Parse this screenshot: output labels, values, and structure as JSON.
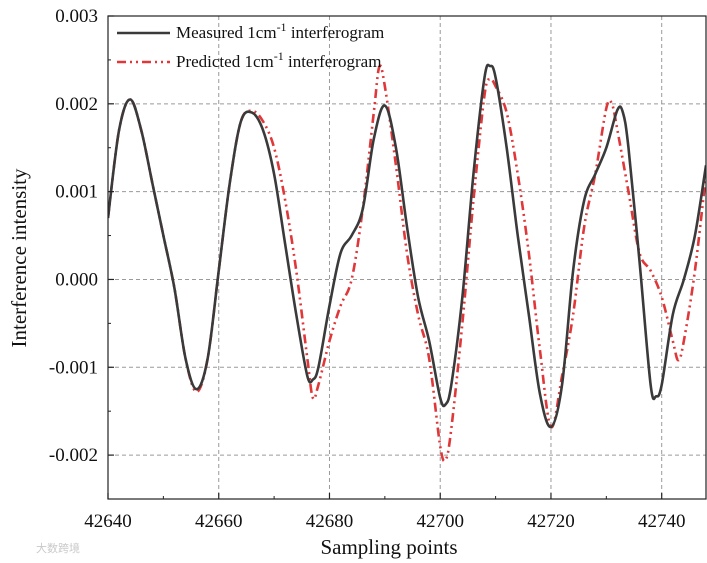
{
  "chart_data": {
    "type": "line",
    "title": "",
    "xlabel": "Sampling points",
    "ylabel": "Interference intensity",
    "xlim": [
      42640,
      42748
    ],
    "ylim": [
      -0.0025,
      0.003
    ],
    "xticks": [
      42640,
      42660,
      42680,
      42700,
      42720,
      42740
    ],
    "yticks": [
      -0.002,
      -0.001,
      0.0,
      0.001,
      0.002,
      0.003
    ],
    "xtick_labels": [
      "42640",
      "42660",
      "42680",
      "42700",
      "42720",
      "42740"
    ],
    "ytick_labels": [
      "-0.002",
      "-0.001",
      "0.000",
      "0.001",
      "0.002",
      "0.003"
    ],
    "grid": true,
    "legend_position": "top-left",
    "series": [
      {
        "name": "Measured 1cm-1 interferogram",
        "legend_main": "Measured 1cm",
        "legend_sup": "-1",
        "legend_tail": " interferogram",
        "color": "#3a3a3a",
        "style": "solid",
        "points": [
          [
            42640,
            0.0007
          ],
          [
            42642,
            0.0017
          ],
          [
            42644,
            0.00205
          ],
          [
            42646,
            0.0017
          ],
          [
            42648,
            0.0011
          ],
          [
            42650,
            0.0005
          ],
          [
            42652,
            -0.0001
          ],
          [
            42654,
            -0.0009
          ],
          [
            42656,
            -0.00125
          ],
          [
            42658,
            -0.0009
          ],
          [
            42660,
            0.0001
          ],
          [
            42662,
            0.0011
          ],
          [
            42664,
            0.0018
          ],
          [
            42666,
            0.0019
          ],
          [
            42668,
            0.0017
          ],
          [
            42670,
            0.0012
          ],
          [
            42672,
            0.0004
          ],
          [
            42674,
            -0.0004
          ],
          [
            42676,
            -0.0011
          ],
          [
            42677,
            -0.00114
          ],
          [
            42678,
            -0.001
          ],
          [
            42680,
            -0.0003
          ],
          [
            42682,
            0.0003
          ],
          [
            42684,
            0.0005
          ],
          [
            42686,
            0.0008
          ],
          [
            42688,
            0.0016
          ],
          [
            42690,
            0.00198
          ],
          [
            42692,
            0.0015
          ],
          [
            42694,
            0.0006
          ],
          [
            42696,
            -0.0002
          ],
          [
            42698,
            -0.0007
          ],
          [
            42700,
            -0.00135
          ],
          [
            42701,
            -0.00142
          ],
          [
            42702,
            -0.0012
          ],
          [
            42704,
            -0.0002
          ],
          [
            42706,
            0.0012
          ],
          [
            42708,
            0.0023
          ],
          [
            42709,
            0.00243
          ],
          [
            42710,
            0.0023
          ],
          [
            42712,
            0.0015
          ],
          [
            42714,
            0.0005
          ],
          [
            42716,
            -0.0004
          ],
          [
            42718,
            -0.0013
          ],
          [
            42720,
            -0.00168
          ],
          [
            42722,
            -0.0012
          ],
          [
            42724,
            0.0001
          ],
          [
            42726,
            0.0009
          ],
          [
            42728,
            0.0012
          ],
          [
            42730,
            0.0015
          ],
          [
            42732,
            0.00193
          ],
          [
            42733,
            0.0019
          ],
          [
            42734,
            0.0015
          ],
          [
            42736,
            0.0002
          ],
          [
            42738,
            -0.0012
          ],
          [
            42739,
            -0.00133
          ],
          [
            42740,
            -0.0012
          ],
          [
            42742,
            -0.0004
          ],
          [
            42744,
            0.0
          ],
          [
            42746,
            0.0005
          ],
          [
            42748,
            0.0013
          ]
        ]
      },
      {
        "name": "Predicted 1cm-1 interferogram",
        "legend_main": "Predicted 1cm",
        "legend_sup": "-1",
        "legend_tail": " interferogram",
        "color": "#e0383a",
        "style": "dash-dot-dot",
        "points": [
          [
            42640,
            0.0007
          ],
          [
            42642,
            0.0017
          ],
          [
            42644,
            0.00205
          ],
          [
            42646,
            0.0017
          ],
          [
            42648,
            0.0011
          ],
          [
            42650,
            0.0005
          ],
          [
            42652,
            -0.0001
          ],
          [
            42654,
            -0.0009
          ],
          [
            42656,
            -0.00128
          ],
          [
            42658,
            -0.0009
          ],
          [
            42660,
            0.0001
          ],
          [
            42662,
            0.0011
          ],
          [
            42664,
            0.0018
          ],
          [
            42666,
            0.00192
          ],
          [
            42668,
            0.0018
          ],
          [
            42670,
            0.0015
          ],
          [
            42672,
            0.0009
          ],
          [
            42674,
            0.0001
          ],
          [
            42676,
            -0.0009
          ],
          [
            42677,
            -0.00135
          ],
          [
            42678,
            -0.0012
          ],
          [
            42680,
            -0.0007
          ],
          [
            42682,
            -0.0003
          ],
          [
            42684,
            0.0
          ],
          [
            42686,
            0.0008
          ],
          [
            42688,
            0.0019
          ],
          [
            42689,
            0.00242
          ],
          [
            42690,
            0.0022
          ],
          [
            42692,
            0.0013
          ],
          [
            42694,
            0.0003
          ],
          [
            42696,
            -0.0004
          ],
          [
            42698,
            -0.0009
          ],
          [
            42700,
            -0.0019
          ],
          [
            42701,
            -0.00205
          ],
          [
            42702,
            -0.0017
          ],
          [
            42704,
            -0.0005
          ],
          [
            42706,
            0.0009
          ],
          [
            42708,
            0.0021
          ],
          [
            42709,
            0.00228
          ],
          [
            42710,
            0.0022
          ],
          [
            42712,
            0.0019
          ],
          [
            42714,
            0.0012
          ],
          [
            42716,
            0.0003
          ],
          [
            42718,
            -0.0008
          ],
          [
            42720,
            -0.00168
          ],
          [
            42722,
            -0.0011
          ],
          [
            42724,
            -0.0004
          ],
          [
            42726,
            0.0006
          ],
          [
            42728,
            0.0012
          ],
          [
            42730,
            0.00195
          ],
          [
            42731,
            0.002
          ],
          [
            42732,
            0.0017
          ],
          [
            42734,
            0.001
          ],
          [
            42736,
            0.0003
          ],
          [
            42738,
            0.0001
          ],
          [
            42740,
            -0.0002
          ],
          [
            42742,
            -0.0007
          ],
          [
            42743,
            -0.00092
          ],
          [
            42744,
            -0.0007
          ],
          [
            42746,
            0.0001
          ],
          [
            42748,
            0.0012
          ]
        ]
      }
    ]
  },
  "watermark": "大数跨境"
}
